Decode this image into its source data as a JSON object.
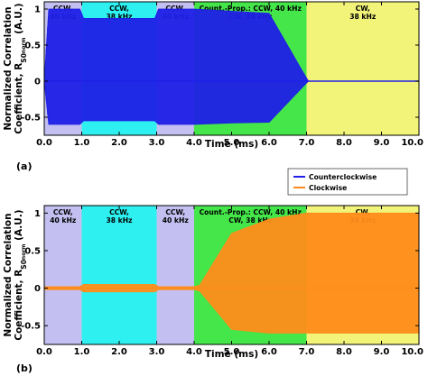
{
  "chart_data": [
    {
      "panel": "(a)",
      "type": "line",
      "ylabel_line1": "Normalized Correlation",
      "ylabel_line2": "Coefficient, R",
      "ylabel_sub": "S0",
      "ylabel_subsub": "norm",
      "ylabel_unit": " (A.U.)",
      "xlabel": "Time (ms)",
      "xlim": [
        0,
        10
      ],
      "ylim": [
        -0.75,
        1.1
      ],
      "xticks": [
        0,
        1,
        2,
        3,
        4,
        5,
        6,
        7,
        8,
        9,
        10
      ],
      "xtick_labels": [
        "0.0",
        "1.0",
        "2.0",
        "3.0",
        "4.0",
        "5.0",
        "6.0",
        "7.0",
        "8.0",
        "9.0",
        "10.0"
      ],
      "yticks": [
        -0.5,
        0,
        0.5,
        1
      ],
      "ytick_labels": [
        "-0.5",
        "0",
        "0.5",
        "1"
      ],
      "segments": [
        {
          "x0": 0,
          "x1": 1,
          "color": "#c3bff0",
          "line1": "CCW,",
          "line2": "40 kHz"
        },
        {
          "x0": 1,
          "x1": 3,
          "color": "#2ef0f0",
          "line1": "CCW,",
          "line2": "38 kHz"
        },
        {
          "x0": 3,
          "x1": 4,
          "color": "#c3bff0",
          "line1": "CCW,",
          "line2": "40 kHz"
        },
        {
          "x0": 4,
          "x1": 7,
          "color": "#45e64a",
          "line1": "Count.-Prop.: CCW, 40 kHz",
          "line2": "CW, 38 kHz"
        },
        {
          "x0": 7,
          "x1": 10,
          "color": "#f2f47a",
          "line1": "CW,",
          "line2": "38 kHz"
        }
      ],
      "series": [
        {
          "name": "Counterclockwise",
          "color": "#1f1fe6",
          "envelope": {
            "x": [
              0,
              0.12,
              0.95,
              1.05,
              2.95,
              3.05,
              4.0,
              5.0,
              6.0,
              6.9,
              7.05,
              10.0
            ],
            "upper": [
              0,
              1.0,
              1.0,
              0.87,
              0.87,
              1.0,
              1.0,
              0.97,
              0.94,
              0.13,
              0.0,
              0.0
            ],
            "lower": [
              0,
              -0.6,
              -0.6,
              -0.55,
              -0.55,
              -0.6,
              -0.6,
              -0.58,
              -0.57,
              -0.08,
              0.0,
              0.0
            ]
          }
        }
      ]
    },
    {
      "panel": "(b)",
      "type": "line",
      "ylabel_line1": "Normalized Correlation",
      "ylabel_line2": "Coefficient, R",
      "ylabel_sub": "S0",
      "ylabel_subsub": "norm",
      "ylabel_unit": " (A.U.)",
      "xlabel": "Time (ms)",
      "xlim": [
        0,
        10
      ],
      "ylim": [
        -0.75,
        1.1
      ],
      "xticks": [
        0,
        1,
        2,
        3,
        4,
        5,
        6,
        7,
        8,
        9,
        10
      ],
      "xtick_labels": [
        "0.0",
        "1.0",
        "2.0",
        "3.0",
        "4.0",
        "5.0",
        "6.0",
        "7.0",
        "8.0",
        "9.0",
        "10.0"
      ],
      "yticks": [
        -0.5,
        0,
        0.5,
        1
      ],
      "ytick_labels": [
        "-0.5",
        "0",
        "0.5",
        "1"
      ],
      "segments": [
        {
          "x0": 0,
          "x1": 1,
          "color": "#c3bff0",
          "line1": "CCW,",
          "line2": "40 kHz"
        },
        {
          "x0": 1,
          "x1": 3,
          "color": "#2ef0f0",
          "line1": "CCW,",
          "line2": "38 kHz"
        },
        {
          "x0": 3,
          "x1": 4,
          "color": "#c3bff0",
          "line1": "CCW,",
          "line2": "40 kHz"
        },
        {
          "x0": 4,
          "x1": 7,
          "color": "#45e64a",
          "line1": "Count.-Prop.: CCW, 40 kHz",
          "line2": "CW, 38 kHz"
        },
        {
          "x0": 7,
          "x1": 10,
          "color": "#f2f47a",
          "line1": "CW,",
          "line2": "38 kHz"
        }
      ],
      "series": [
        {
          "name": "Clockwise",
          "color": "#ff8c1a",
          "envelope": {
            "x": [
              0,
              0.95,
              1.05,
              2.95,
              3.05,
              4.0,
              4.15,
              5.0,
              6.0,
              7.0,
              10.0
            ],
            "upper": [
              0.02,
              0.02,
              0.05,
              0.05,
              0.02,
              0.02,
              0.04,
              0.73,
              0.92,
              1.0,
              1.0
            ],
            "lower": [
              -0.02,
              -0.02,
              -0.05,
              -0.05,
              -0.02,
              -0.02,
              -0.04,
              -0.55,
              -0.6,
              -0.6,
              -0.6
            ]
          }
        }
      ]
    }
  ],
  "legend": {
    "items": [
      {
        "label": "Counterclockwise",
        "color": "#1f1fe6"
      },
      {
        "label": "Clockwise",
        "color": "#ff8c1a"
      }
    ]
  }
}
